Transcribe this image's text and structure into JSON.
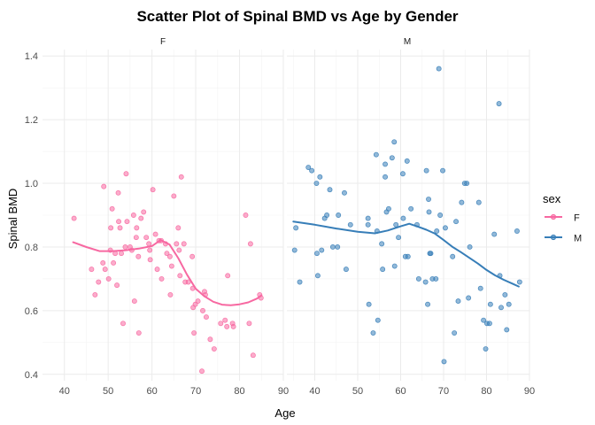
{
  "chart_data": {
    "type": "scatter",
    "title": "Scatter Plot of Spinal BMD vs Age by Gender",
    "xlabel": "Age",
    "ylabel": "Spinal BMD",
    "legend": {
      "title": "sex",
      "position": "right",
      "entries": [
        "F",
        "M"
      ]
    },
    "grid": true,
    "facets": [
      {
        "label": "F",
        "color": "#f768a1",
        "xlim": [
          35,
          90
        ],
        "x_ticks": [
          40,
          50,
          60,
          70,
          80,
          90
        ],
        "ylim": [
          0.38,
          1.42
        ],
        "y_ticks": [
          0.4,
          0.6,
          0.8,
          1.0,
          1.2,
          1.4
        ],
        "points": [
          [
            42.2,
            0.89
          ],
          [
            46.2,
            0.73
          ],
          [
            47.0,
            0.65
          ],
          [
            47.8,
            0.69
          ],
          [
            48.8,
            0.75
          ],
          [
            49.0,
            0.99
          ],
          [
            49.3,
            0.73
          ],
          [
            50.1,
            0.7
          ],
          [
            50.5,
            0.79
          ],
          [
            50.6,
            0.86
          ],
          [
            50.9,
            0.92
          ],
          [
            51.2,
            0.75
          ],
          [
            51.6,
            0.78
          ],
          [
            52.0,
            0.68
          ],
          [
            52.3,
            0.97
          ],
          [
            52.4,
            0.88
          ],
          [
            52.7,
            0.86
          ],
          [
            53.0,
            0.78
          ],
          [
            53.4,
            0.56
          ],
          [
            53.9,
            0.8
          ],
          [
            54.1,
            1.03
          ],
          [
            54.3,
            0.88
          ],
          [
            55.0,
            0.8
          ],
          [
            55.4,
            0.79
          ],
          [
            55.8,
            0.9
          ],
          [
            56.0,
            0.63
          ],
          [
            56.4,
            0.83
          ],
          [
            56.5,
            0.86
          ],
          [
            56.9,
            0.77
          ],
          [
            57.0,
            0.53
          ],
          [
            57.5,
            0.89
          ],
          [
            58.1,
            0.91
          ],
          [
            58.7,
            0.83
          ],
          [
            59.3,
            0.81
          ],
          [
            59.5,
            0.79
          ],
          [
            59.6,
            0.76
          ],
          [
            60.2,
            0.98
          ],
          [
            60.8,
            0.84
          ],
          [
            61.2,
            0.73
          ],
          [
            61.6,
            0.82
          ],
          [
            62.1,
            0.82
          ],
          [
            62.2,
            0.7
          ],
          [
            63.1,
            0.81
          ],
          [
            63.4,
            0.78
          ],
          [
            64.1,
            0.77
          ],
          [
            64.2,
            0.65
          ],
          [
            64.5,
            0.74
          ],
          [
            65.0,
            0.96
          ],
          [
            65.6,
            0.81
          ],
          [
            66.0,
            0.86
          ],
          [
            66.2,
            0.79
          ],
          [
            66.4,
            0.71
          ],
          [
            66.7,
            1.02
          ],
          [
            67.3,
            0.81
          ],
          [
            67.6,
            0.69
          ],
          [
            68.3,
            0.69
          ],
          [
            69.2,
            0.77
          ],
          [
            69.3,
            0.67
          ],
          [
            69.4,
            0.61
          ],
          [
            69.6,
            0.53
          ],
          [
            69.9,
            0.62
          ],
          [
            70.5,
            0.63
          ],
          [
            71.4,
            0.41
          ],
          [
            71.6,
            0.6
          ],
          [
            72.0,
            0.66
          ],
          [
            72.2,
            0.65
          ],
          [
            72.4,
            0.58
          ],
          [
            73.3,
            0.51
          ],
          [
            74.2,
            0.48
          ],
          [
            75.7,
            0.56
          ],
          [
            76.7,
            0.57
          ],
          [
            77.1,
            0.55
          ],
          [
            77.3,
            0.71
          ],
          [
            78.4,
            0.56
          ],
          [
            78.6,
            0.55
          ],
          [
            81.4,
            0.9
          ],
          [
            82.2,
            0.56
          ],
          [
            82.5,
            0.81
          ],
          [
            83.1,
            0.46
          ],
          [
            84.6,
            0.65
          ],
          [
            84.9,
            0.64
          ]
        ],
        "smooth": [
          [
            42,
            0.815
          ],
          [
            45,
            0.8
          ],
          [
            48,
            0.787
          ],
          [
            51,
            0.787
          ],
          [
            54,
            0.79
          ],
          [
            57,
            0.795
          ],
          [
            60,
            0.803
          ],
          [
            62,
            0.822
          ],
          [
            64,
            0.808
          ],
          [
            66,
            0.765
          ],
          [
            68,
            0.713
          ],
          [
            70,
            0.669
          ],
          [
            72,
            0.645
          ],
          [
            74,
            0.628
          ],
          [
            76,
            0.619
          ],
          [
            78,
            0.617
          ],
          [
            80,
            0.62
          ],
          [
            82,
            0.626
          ],
          [
            84,
            0.638
          ],
          [
            85,
            0.648
          ]
        ]
      },
      {
        "label": "M",
        "color": "#377eb8",
        "xlim": [
          33.5,
          90
        ],
        "x_ticks": [
          40,
          50,
          60,
          70,
          80,
          90
        ],
        "ylim": [
          0.38,
          1.42
        ],
        "y_ticks": [
          0.4,
          0.6,
          0.8,
          1.0,
          1.2,
          1.4
        ],
        "points": [
          [
            35.3,
            0.79
          ],
          [
            35.6,
            0.86
          ],
          [
            36.5,
            0.69
          ],
          [
            38.5,
            1.05
          ],
          [
            39.3,
            1.04
          ],
          [
            40.4,
            1.0
          ],
          [
            40.5,
            0.78
          ],
          [
            40.7,
            0.71
          ],
          [
            41.2,
            1.02
          ],
          [
            41.6,
            0.79
          ],
          [
            42.3,
            0.89
          ],
          [
            42.8,
            0.9
          ],
          [
            43.5,
            0.98
          ],
          [
            44.2,
            0.8
          ],
          [
            45.3,
            0.8
          ],
          [
            45.5,
            0.9
          ],
          [
            46.9,
            0.97
          ],
          [
            47.3,
            0.73
          ],
          [
            48.3,
            0.87
          ],
          [
            52.4,
            0.89
          ],
          [
            52.4,
            0.87
          ],
          [
            52.6,
            0.62
          ],
          [
            53.6,
            0.53
          ],
          [
            54.3,
            1.09
          ],
          [
            54.5,
            0.85
          ],
          [
            54.7,
            0.57
          ],
          [
            55.6,
            0.81
          ],
          [
            55.8,
            0.73
          ],
          [
            56.4,
            1.06
          ],
          [
            56.4,
            1.02
          ],
          [
            56.7,
            0.91
          ],
          [
            57.2,
            0.92
          ],
          [
            58.0,
            1.08
          ],
          [
            58.5,
            1.13
          ],
          [
            58.6,
            0.74
          ],
          [
            58.9,
            0.87
          ],
          [
            59.5,
            0.83
          ],
          [
            60.5,
            1.03
          ],
          [
            60.6,
            0.89
          ],
          [
            61.1,
            0.77
          ],
          [
            61.5,
            1.07
          ],
          [
            61.7,
            0.77
          ],
          [
            62.4,
            0.92
          ],
          [
            63.8,
            0.87
          ],
          [
            64.2,
            0.7
          ],
          [
            65.8,
            0.69
          ],
          [
            66.0,
            1.04
          ],
          [
            66.3,
            0.62
          ],
          [
            66.5,
            0.95
          ],
          [
            66.6,
            0.91
          ],
          [
            66.8,
            0.78
          ],
          [
            67.0,
            0.78
          ],
          [
            67.4,
            0.7
          ],
          [
            68.2,
            0.7
          ],
          [
            68.4,
            0.85
          ],
          [
            68.9,
            1.36
          ],
          [
            69.2,
            0.9
          ],
          [
            69.8,
            1.04
          ],
          [
            70.1,
            0.44
          ],
          [
            70.4,
            0.86
          ],
          [
            72.1,
            0.77
          ],
          [
            72.5,
            0.53
          ],
          [
            72.9,
            0.88
          ],
          [
            73.4,
            0.63
          ],
          [
            74.2,
            0.94
          ],
          [
            74.9,
            1.0
          ],
          [
            75.4,
            1.0
          ],
          [
            75.8,
            0.64
          ],
          [
            76.1,
            0.8
          ],
          [
            78.2,
            0.94
          ],
          [
            78.6,
            0.67
          ],
          [
            79.3,
            0.57
          ],
          [
            79.8,
            0.48
          ],
          [
            80.1,
            0.56
          ],
          [
            80.7,
            0.56
          ],
          [
            80.9,
            0.62
          ],
          [
            81.8,
            0.84
          ],
          [
            82.9,
            1.25
          ],
          [
            83.1,
            0.71
          ],
          [
            83.4,
            0.61
          ],
          [
            84.3,
            0.65
          ],
          [
            84.7,
            0.54
          ],
          [
            85.2,
            0.62
          ],
          [
            87.1,
            0.85
          ],
          [
            87.7,
            0.69
          ]
        ],
        "smooth": [
          [
            35,
            0.88
          ],
          [
            40,
            0.87
          ],
          [
            45,
            0.858
          ],
          [
            50,
            0.848
          ],
          [
            54,
            0.843
          ],
          [
            57,
            0.852
          ],
          [
            60,
            0.865
          ],
          [
            62,
            0.873
          ],
          [
            64,
            0.864
          ],
          [
            66,
            0.854
          ],
          [
            68,
            0.842
          ],
          [
            70,
            0.822
          ],
          [
            72,
            0.801
          ],
          [
            74,
            0.784
          ],
          [
            76,
            0.766
          ],
          [
            78,
            0.748
          ],
          [
            80,
            0.728
          ],
          [
            82,
            0.711
          ],
          [
            84,
            0.697
          ],
          [
            86,
            0.685
          ],
          [
            87.5,
            0.676
          ]
        ]
      }
    ]
  }
}
